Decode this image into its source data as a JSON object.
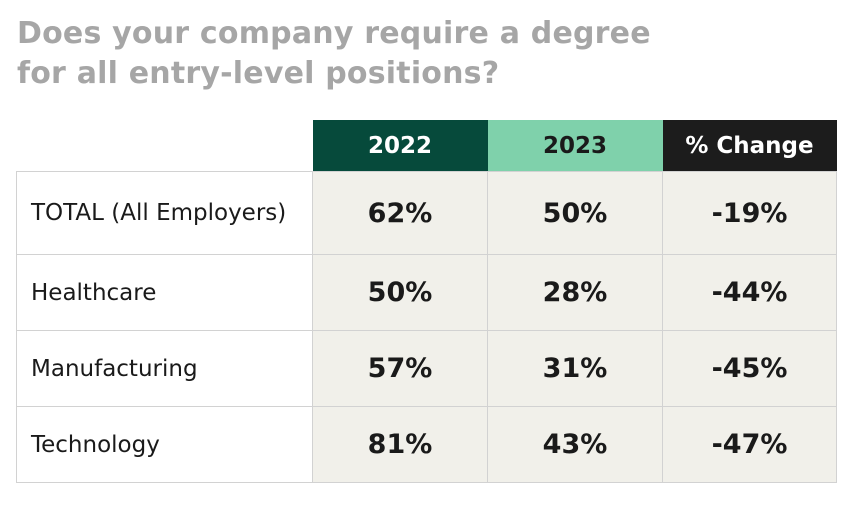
{
  "title": "Does your company require a degree for all entry-level positions?",
  "columns": [
    "2022",
    "2023",
    "% Change"
  ],
  "rows": [
    {
      "label": "TOTAL (All Employers)",
      "values": [
        "62%",
        "50%",
        "-19%"
      ]
    },
    {
      "label": "Healthcare",
      "values": [
        "50%",
        "28%",
        "-44%"
      ]
    },
    {
      "label": "Manufacturing",
      "values": [
        "57%",
        "31%",
        "-45%"
      ]
    },
    {
      "label": "Technology",
      "values": [
        "81%",
        "43%",
        "-47%"
      ]
    }
  ],
  "colors": {
    "title": "#a6a6a6",
    "header_2022": "#064a3b",
    "header_2023": "#7fd1ab",
    "header_change": "#1c1c1c",
    "value_cell_bg": "#f1f0ea",
    "border": "#d2d2d2"
  },
  "chart_data": {
    "type": "table",
    "title": "Does your company require a degree for all entry-level positions?",
    "columns": [
      "2022",
      "2023",
      "% Change"
    ],
    "categories": [
      "TOTAL (All Employers)",
      "Healthcare",
      "Manufacturing",
      "Technology"
    ],
    "series": [
      {
        "name": "2022",
        "values": [
          62,
          50,
          57,
          81
        ]
      },
      {
        "name": "2023",
        "values": [
          50,
          28,
          31,
          43
        ]
      },
      {
        "name": "% Change",
        "values": [
          -19,
          -44,
          -45,
          -47
        ]
      }
    ]
  }
}
